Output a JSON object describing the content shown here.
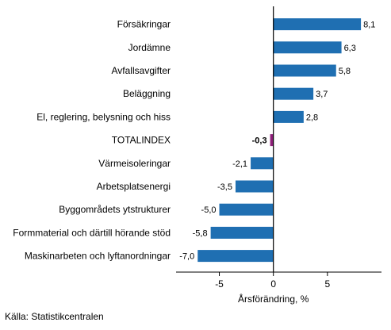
{
  "chart_data": {
    "type": "bar",
    "orientation": "horizontal",
    "categories": [
      "Försäkringar",
      "Jordämne",
      "Avfallsavgifter",
      "Beläggning",
      "El, reglering, belysning och hiss",
      "TOTALINDEX",
      "Värmeisoleringar",
      "Arbetsplatsenergi",
      "Byggområdets ytstrukturer",
      "Formmaterial och därtill hörande stöd",
      "Maskinarbeten och lyftanordningar"
    ],
    "values": [
      8.1,
      6.3,
      5.8,
      3.7,
      2.8,
      -0.3,
      -2.1,
      -3.5,
      -5.0,
      -5.8,
      -7.0
    ],
    "value_labels": [
      "8,1",
      "6,3",
      "5,8",
      "3,7",
      "2,8",
      "-0,3",
      "-2,1",
      "-3,5",
      "-5,0",
      "-5,8",
      "-7,0"
    ],
    "highlight_category": "TOTALINDEX",
    "xlabel": "Årsförändring, %",
    "xlim": [
      -9,
      10
    ],
    "xticks": [
      -5,
      0,
      5
    ],
    "xtick_labels": [
      "-5",
      "0",
      "5"
    ],
    "grid": false,
    "colors": {
      "bar": "#1f6fb2",
      "highlight": "#8e1f7a",
      "zero_line": "#000000",
      "axis": "#000000"
    }
  },
  "source": "Källa: Statistikcentralen"
}
